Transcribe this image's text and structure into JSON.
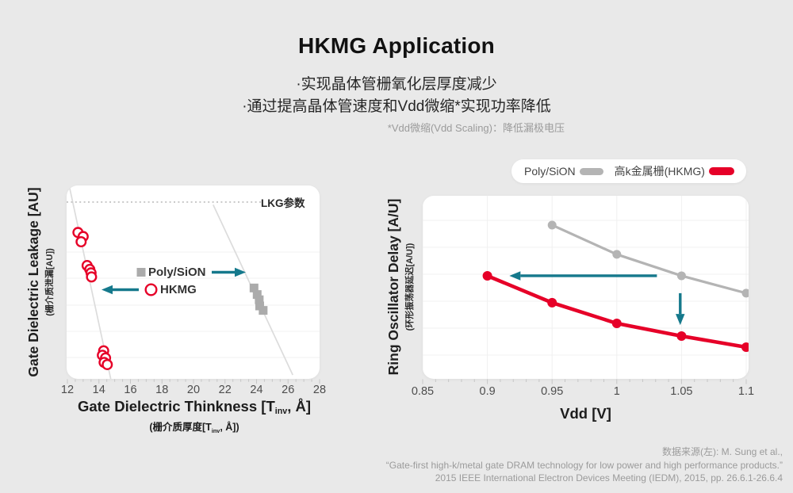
{
  "header": {
    "title": "HKMG Application",
    "bullets": [
      "·实现晶体管栅氧化层厚度减少",
      "·通过提高晶体管速度和Vdd微缩*实现功率降低"
    ],
    "note": "*Vdd微缩(Vdd Scaling)：降低漏极电压"
  },
  "legend": {
    "items": [
      {
        "label": "Poly/SiON",
        "color": "#b4b4b4"
      },
      {
        "label": "高k金属栅(HKMG)",
        "color": "#e60028"
      }
    ]
  },
  "chart_data": [
    {
      "type": "scatter",
      "xlabel": {
        "pre": "Gate Dielectric Thinkness [T",
        "sub": "inv",
        "post": ", Å]"
      },
      "xlabel_cn": {
        "pre": "(栅介质厚度[T",
        "sub": "inv",
        "post": ", Å])"
      },
      "ylabel": "Gate Dielectric Leakage [AU]",
      "ylabel_cn": "(栅介质泄漏[AU])",
      "xlim": [
        12,
        28
      ],
      "xticks": [
        "12",
        "14",
        "16",
        "18",
        "20",
        "22",
        "24",
        "26",
        "28"
      ],
      "ylim": [
        0,
        1
      ],
      "grid": "horizontal",
      "threshold_line": {
        "label": "LKG参数",
        "y": 0.914,
        "style": "dotted"
      },
      "series": [
        {
          "name": "HKMG",
          "marker": "open-circle",
          "color": "#e60028",
          "points": [
            [
              12.67,
              0.757
            ],
            [
              13.0,
              0.736
            ],
            [
              12.87,
              0.709
            ],
            [
              13.25,
              0.586
            ],
            [
              13.42,
              0.566
            ],
            [
              13.5,
              0.548
            ],
            [
              13.53,
              0.527
            ],
            [
              14.3,
              0.145
            ],
            [
              14.22,
              0.122
            ],
            [
              14.42,
              0.108
            ],
            [
              14.33,
              0.085
            ],
            [
              14.53,
              0.074
            ]
          ]
        },
        {
          "name": "Poly/SiON",
          "marker": "square",
          "color": "#ababab",
          "points": [
            [
              23.84,
              0.47
            ],
            [
              24.04,
              0.436
            ],
            [
              24.17,
              0.409
            ],
            [
              24.2,
              0.377
            ],
            [
              24.42,
              0.354
            ]
          ]
        }
      ],
      "trend_lines": [
        {
          "x1": 12.15,
          "y1": 0.985,
          "x2": 14.75,
          "y2": 0.0
        },
        {
          "x1": 21.25,
          "y1": 0.9,
          "x2": 26.3,
          "y2": 0.02
        }
      ],
      "inner_legend": [
        {
          "label": "Poly/SiON",
          "marker": "square",
          "arrow": "right"
        },
        {
          "label": "HKMG",
          "marker": "open-circle",
          "arrow": "left"
        }
      ]
    },
    {
      "type": "line",
      "xlabel": "Vdd [V]",
      "ylabel": "Ring Oscillator Delay [A/U]",
      "ylabel_cn": "(环形振荡器延迟[A/U])",
      "xlim": [
        0.85,
        1.1
      ],
      "xticks": [
        "0.85",
        "0.9",
        "0.95",
        "1",
        "1.05",
        "1.1"
      ],
      "ylim": [
        0,
        1
      ],
      "grid": "both",
      "series": [
        {
          "name": "Poly/SiON",
          "color": "#b4b4b4",
          "x": [
            0.95,
            1.0,
            1.05,
            1.1
          ],
          "y": [
            0.84,
            0.68,
            0.563,
            0.468
          ]
        },
        {
          "name": "高k金属栅(HKMG)",
          "color": "#e60028",
          "x": [
            0.9,
            0.95,
            1.0,
            1.05,
            1.1
          ],
          "y": [
            0.563,
            0.416,
            0.303,
            0.234,
            0.173
          ]
        }
      ],
      "arrows": [
        {
          "dir": "left",
          "y": 0.563,
          "x_from": 1.031,
          "x_to": 0.917,
          "color": "#15798c"
        },
        {
          "dir": "down",
          "x": 1.049,
          "y_from": 0.468,
          "y_to": 0.294,
          "color": "#15798c"
        }
      ]
    }
  ],
  "footer": {
    "lines": [
      "数据来源(左): M. Sung et al.,",
      "“Gate-first high-k/metal gate DRAM technology for low power and high performance products.”",
      "2015 IEEE International Electron Devices Meeting (IEDM), 2015, pp. 26.6.1-26.6.4"
    ]
  },
  "colors": {
    "background": "#e9e9e9",
    "panel": "#ffffff",
    "red": "#e60028",
    "gray_series": "#b4b4b4",
    "teal": "#15798c",
    "gridline": "#f0f0f0",
    "trend_line": "#dcdcdc"
  }
}
